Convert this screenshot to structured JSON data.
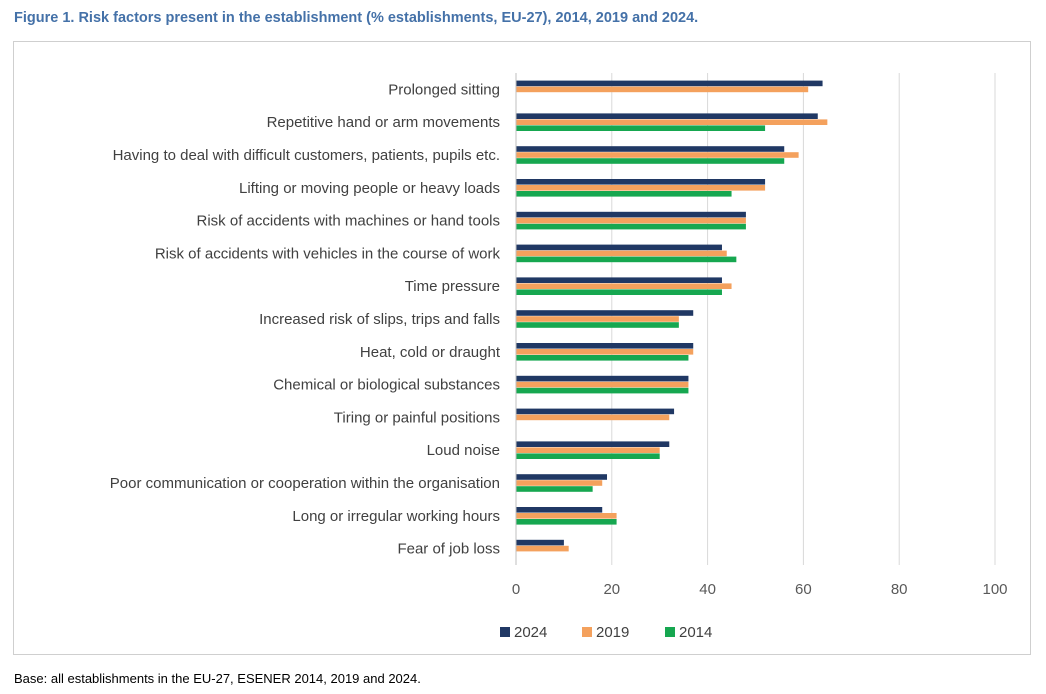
{
  "title": "Figure 1. Risk factors present in the establishment (% establishments, EU-27), 2014, 2019 and 2024.",
  "footnote": "Base: all establishments in the EU-27, ESENER 2014, 2019 and 2024.",
  "colors": {
    "s2024": "#203864",
    "s2019": "#f4a15d",
    "s2014": "#16a750",
    "grid": "#d9d9d9",
    "axis": "#bfbfbf"
  },
  "chart_data": {
    "type": "bar",
    "orientation": "horizontal",
    "title": "Risk factors present in the establishment (% establishments, EU-27), 2014, 2019 and 2024",
    "xlabel": "",
    "ylabel": "",
    "xlim": [
      0,
      100
    ],
    "xticks": [
      0,
      20,
      40,
      60,
      80,
      100
    ],
    "grid": true,
    "legend": "bottom",
    "categories": [
      "Prolonged sitting",
      "Repetitive hand or arm movements",
      "Having to deal with difficult customers, patients, pupils etc.",
      "Lifting or moving people or heavy loads",
      "Risk of accidents with machines or hand tools",
      "Risk of accidents with vehicles in the course of work",
      "Time pressure",
      "Increased risk of slips, trips and falls",
      "Heat, cold or draught",
      "Chemical or biological substances",
      "Tiring or painful positions",
      "Loud noise",
      "Poor communication or cooperation within the organisation",
      "Long or irregular working hours",
      "Fear of job loss"
    ],
    "series": [
      {
        "name": "2024",
        "values": [
          64,
          63,
          56,
          52,
          48,
          43,
          43,
          37,
          37,
          36,
          33,
          32,
          19,
          18,
          10
        ]
      },
      {
        "name": "2019",
        "values": [
          61,
          65,
          59,
          52,
          48,
          44,
          45,
          34,
          37,
          36,
          32,
          30,
          18,
          21,
          11
        ]
      },
      {
        "name": "2014",
        "values": [
          null,
          52,
          56,
          45,
          48,
          46,
          43,
          34,
          36,
          36,
          null,
          30,
          16,
          21,
          null
        ]
      }
    ]
  }
}
